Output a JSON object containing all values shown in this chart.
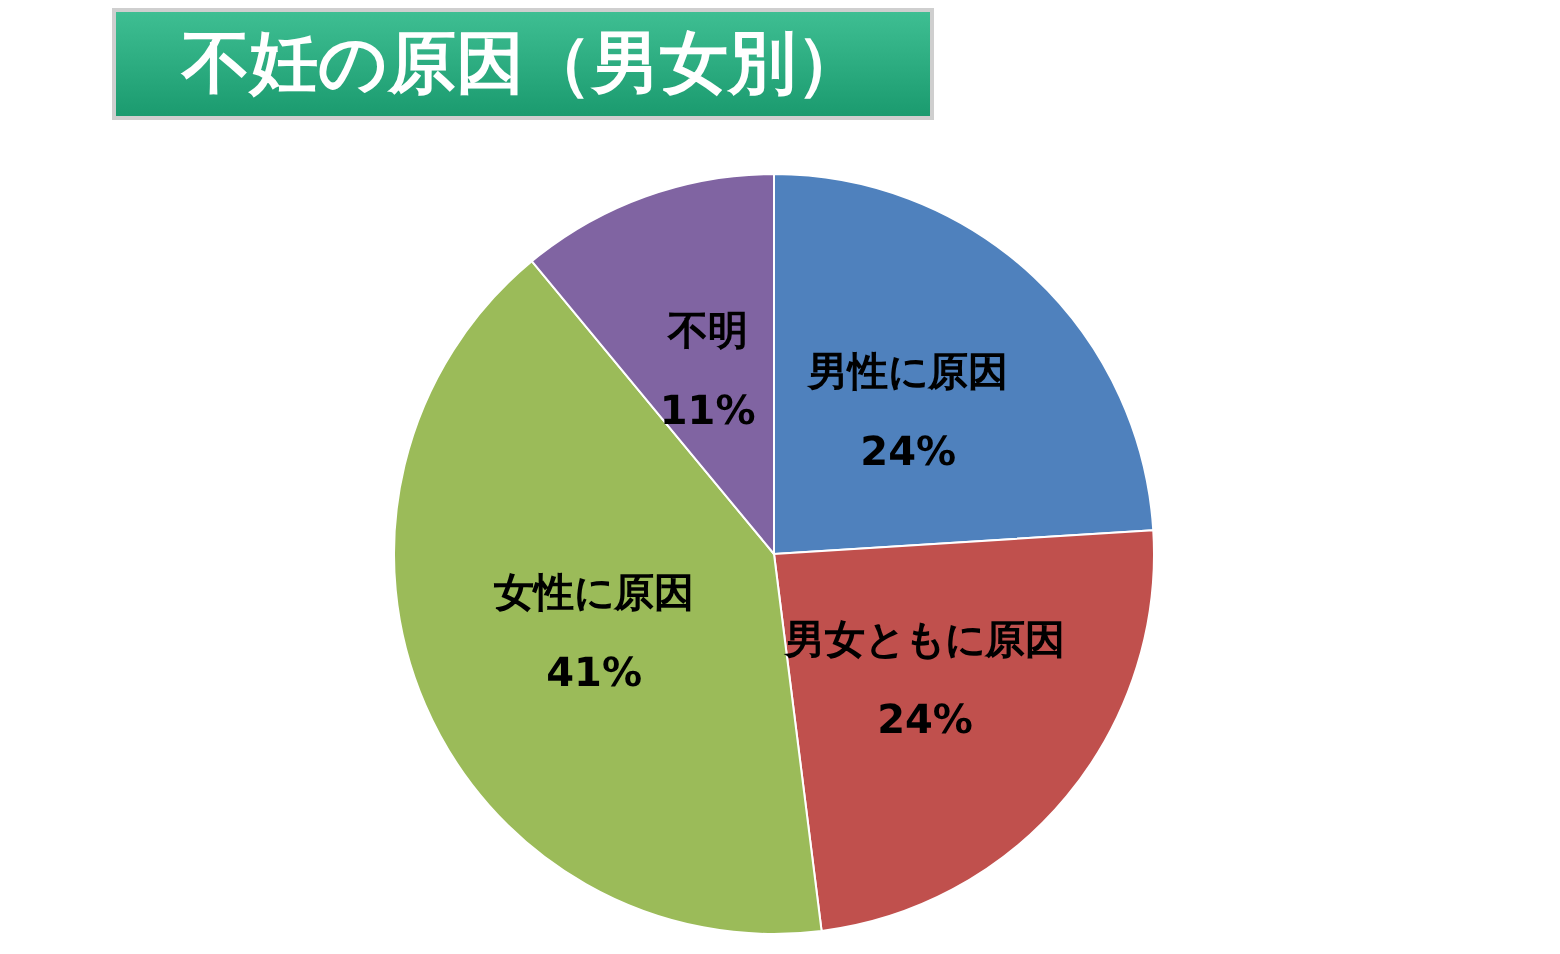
{
  "chart_data": {
    "type": "pie",
    "title": "不妊の原因（男女別）",
    "categories": [
      "男性に原因",
      "男女ともに原因",
      "女性に原因",
      "不明"
    ],
    "values": [
      24,
      24,
      41,
      11
    ],
    "colors": [
      "#4f81bd",
      "#c0504d",
      "#9bbb59",
      "#8064a2"
    ],
    "value_labels": [
      "24%",
      "24%",
      "41%",
      "11%"
    ],
    "legend": false
  }
}
